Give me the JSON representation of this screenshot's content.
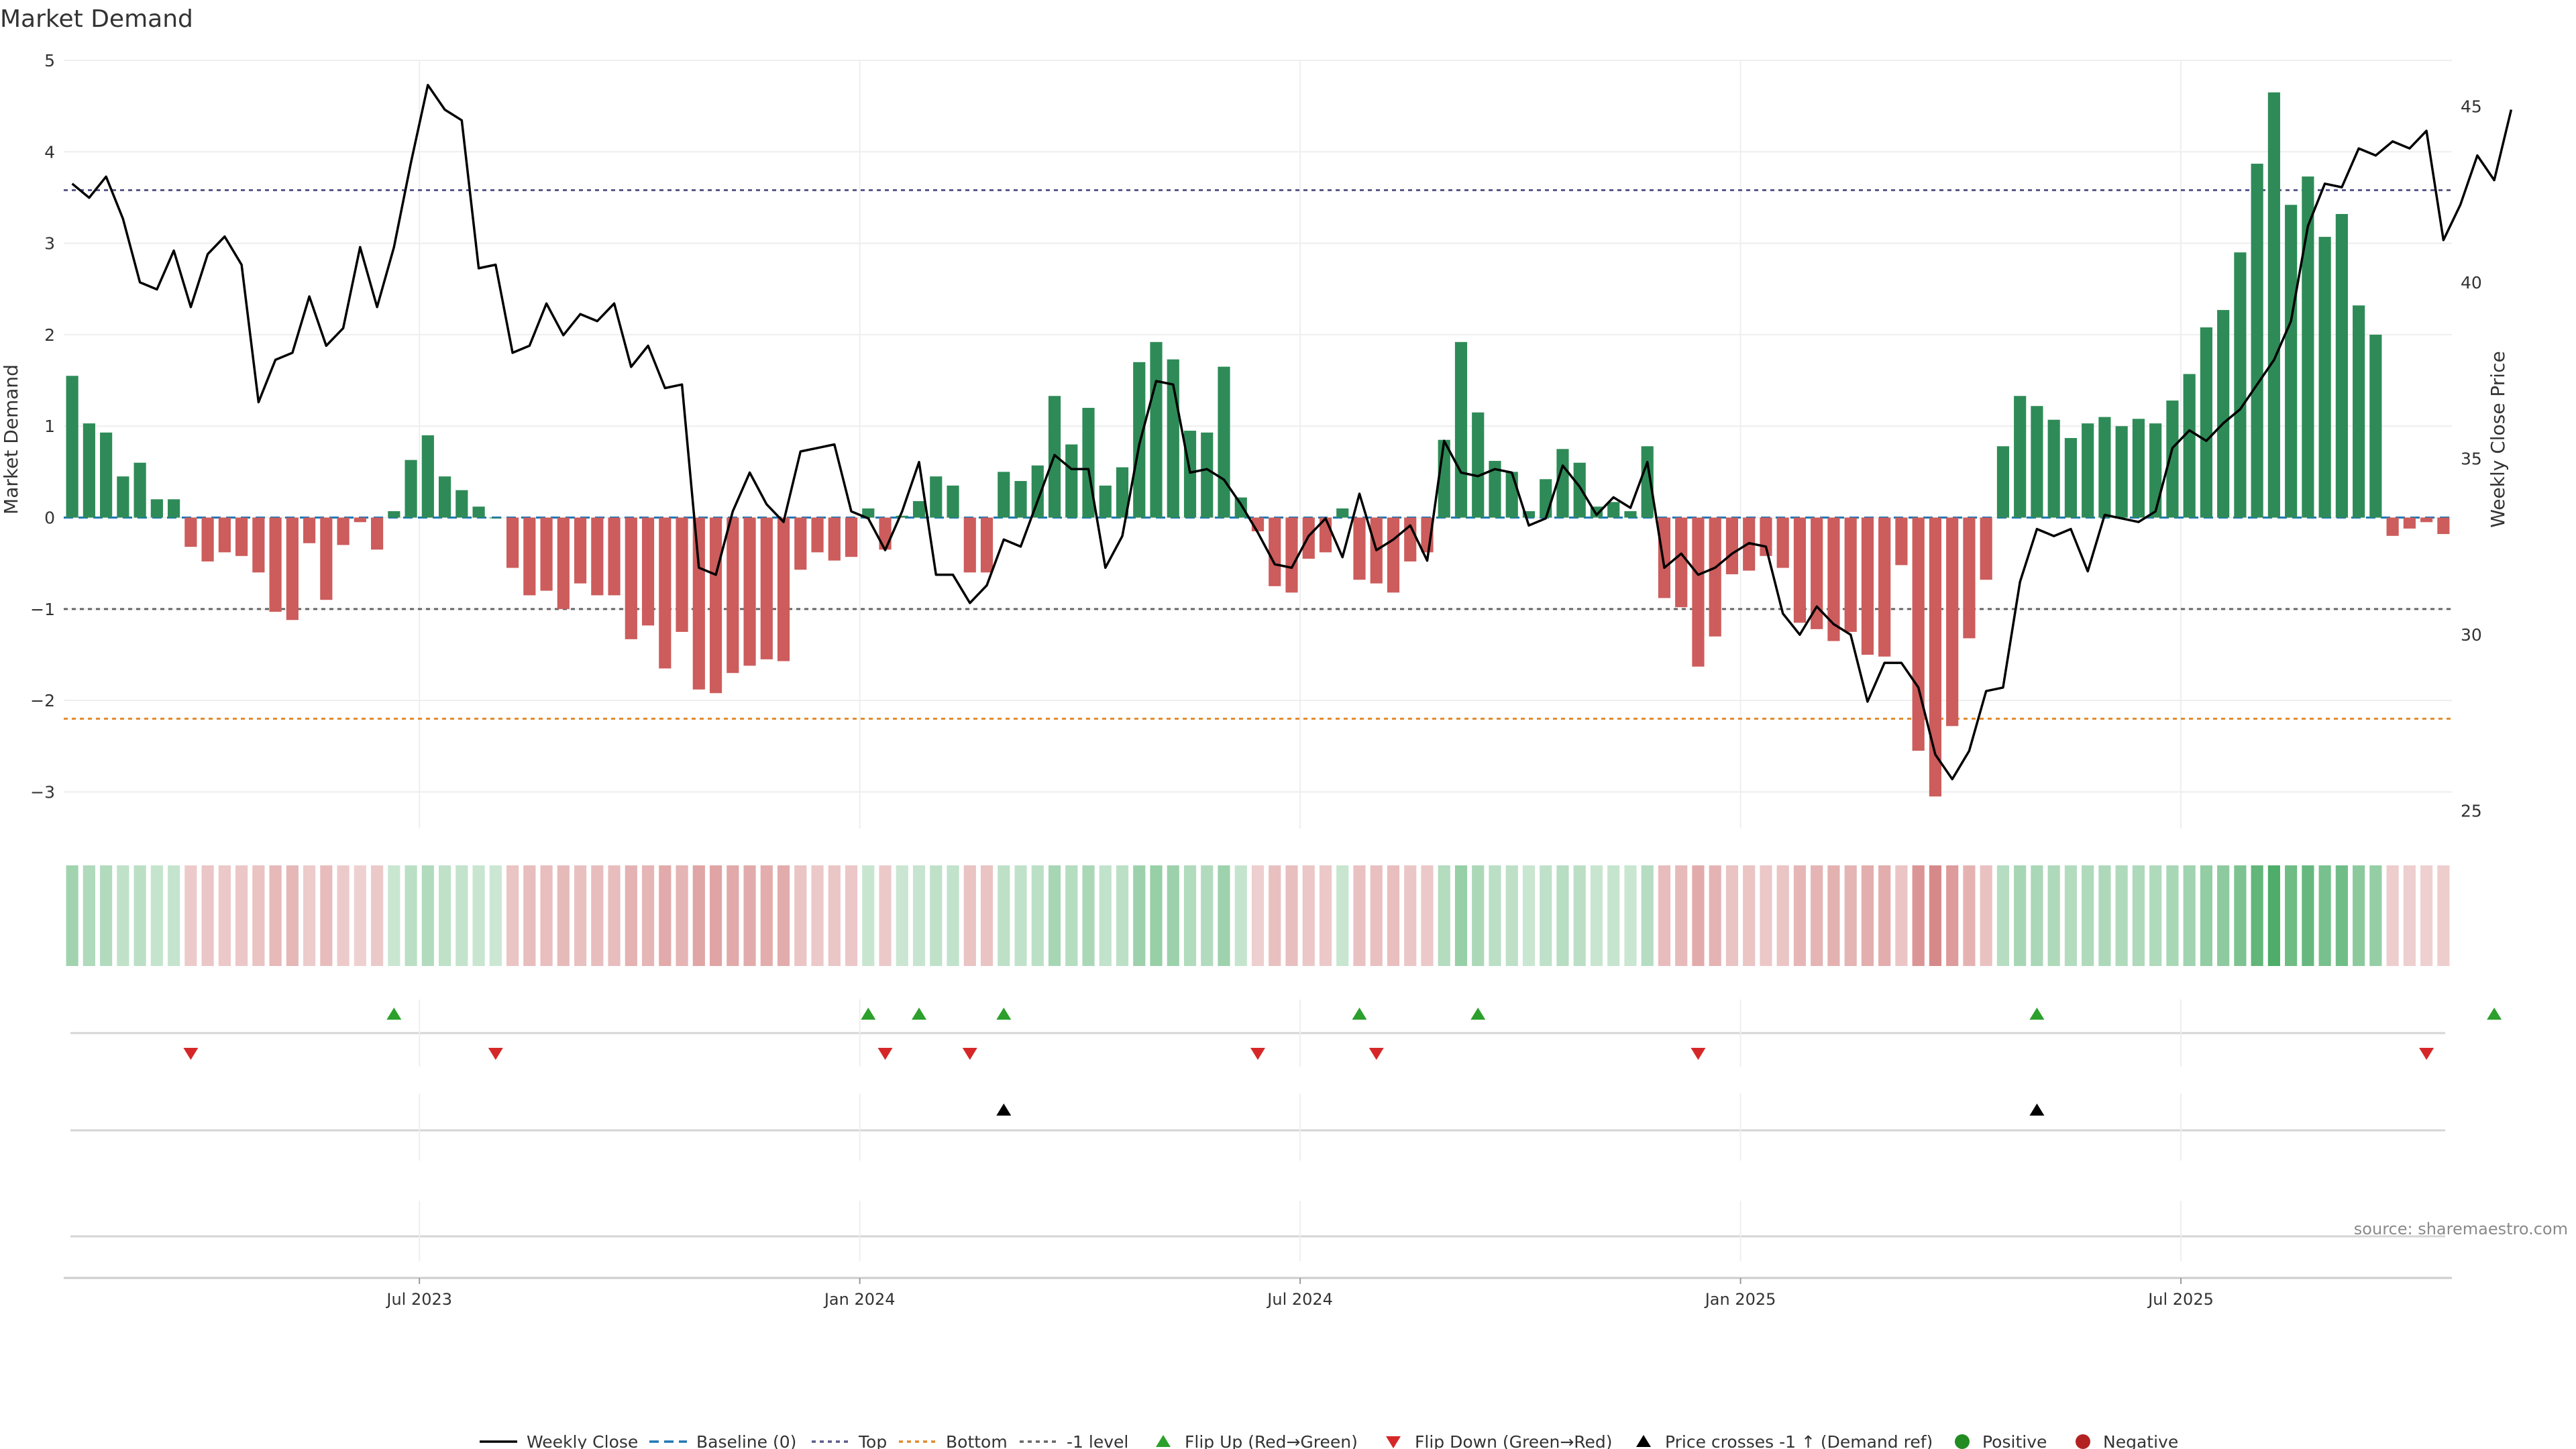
{
  "chart_data": {
    "type": "bar",
    "title": "Market Demand",
    "ylabel": "Market Demand",
    "y2label": "Weekly Close Price",
    "ylim": [
      -3.4,
      5.0
    ],
    "y2lim": [
      24.5,
      46.3
    ],
    "y_ticks": [
      5,
      4,
      3,
      2,
      1,
      0,
      -1,
      -2,
      -3
    ],
    "y_tick_labels": [
      "5",
      "4",
      "3",
      "2",
      "1",
      "0",
      "−1",
      "−2",
      "−3"
    ],
    "y2_ticks": [
      45,
      40,
      35,
      30,
      25
    ],
    "y2_tick_labels": [
      "45",
      "40",
      "35",
      "30",
      "25"
    ],
    "x_tick_index": [
      20.5,
      46.5,
      72.5,
      98.5,
      124.5
    ],
    "x_tick_labels": [
      "Jul 2023",
      "Jan 2024",
      "Jul 2024",
      "Jan 2025",
      "Jul 2025"
    ],
    "reference_lines": {
      "top": 3.58,
      "bottom": -2.2,
      "minus_one": -1,
      "baseline": 0
    },
    "demand": [
      1.55,
      1.03,
      0.93,
      0.45,
      0.6,
      0.2,
      0.2,
      -0.32,
      -0.48,
      -0.38,
      -0.42,
      -0.6,
      -1.03,
      -1.12,
      -0.28,
      -0.9,
      -0.3,
      -0.05,
      -0.35,
      0.07,
      0.63,
      0.9,
      0.45,
      0.3,
      0.12,
      0,
      -0.55,
      -0.85,
      -0.8,
      -1.0,
      -0.72,
      -0.85,
      -0.85,
      -1.33,
      -1.18,
      -1.65,
      -1.25,
      -1.88,
      -1.92,
      -1.7,
      -1.62,
      -1.55,
      -1.57,
      -0.57,
      -0.38,
      -0.47,
      -0.43,
      0.1,
      -0.35,
      0.02,
      0.18,
      0.45,
      0.35,
      -0.6,
      -0.6,
      0.5,
      0.4,
      0.57,
      1.33,
      0.8,
      1.2,
      0.35,
      0.55,
      1.7,
      1.92,
      1.73,
      0.95,
      0.93,
      1.65,
      0.22,
      -0.15,
      -0.75,
      -0.82,
      -0.45,
      -0.38,
      0.1,
      -0.68,
      -0.72,
      -0.82,
      -0.48,
      -0.38,
      0.85,
      1.92,
      1.15,
      0.62,
      0.5,
      0.07,
      0.42,
      0.75,
      0.6,
      0.12,
      0.17,
      0.07,
      0.78,
      -0.88,
      -0.98,
      -1.63,
      -1.3,
      -0.62,
      -0.58,
      -0.42,
      -0.55,
      -1.15,
      -1.22,
      -1.35,
      -1.25,
      -1.5,
      -1.52,
      -0.52,
      -2.55,
      -3.05,
      -2.28,
      -1.32,
      -0.68,
      0.78,
      1.33,
      1.22,
      1.07,
      0.87,
      1.03,
      1.1,
      1.0,
      1.08,
      1.03,
      1.28,
      1.57,
      2.08,
      2.27,
      2.9,
      3.87,
      4.65,
      3.42,
      3.73,
      3.07,
      3.32,
      2.32,
      2.0,
      -0.2,
      -0.12,
      -0.05,
      -0.18
    ],
    "flip_up_index": [
      19,
      47,
      50,
      55,
      76,
      83,
      116,
      143
    ],
    "flip_down_index": [
      7,
      25,
      48,
      53,
      70,
      77,
      96,
      139
    ],
    "cross_up_index": [
      55,
      116
    ],
    "price": [
      42.8,
      42.4,
      43.0,
      41.8,
      40.0,
      39.8,
      40.9,
      39.3,
      40.8,
      41.3,
      40.5,
      36.6,
      37.8,
      38.0,
      39.6,
      38.2,
      38.7,
      41.0,
      39.3,
      41.0,
      43.4,
      45.6,
      44.9,
      44.6,
      40.4,
      40.5,
      38.0,
      38.2,
      39.4,
      38.5,
      39.1,
      38.9,
      39.4,
      37.6,
      38.2,
      37.0,
      37.1,
      31.9,
      31.7,
      33.5,
      34.6,
      33.7,
      33.2,
      35.2,
      35.3,
      35.4,
      33.5,
      33.3,
      32.4,
      33.5,
      34.9,
      31.7,
      31.7,
      30.9,
      31.4,
      32.7,
      32.5,
      33.8,
      35.1,
      34.7,
      34.7,
      31.9,
      32.8,
      35.4,
      37.2,
      37.1,
      34.6,
      34.7,
      34.4,
      33.7,
      32.9,
      32.0,
      31.9,
      32.8,
      33.3,
      32.2,
      34.0,
      32.4,
      32.7,
      33.1,
      32.1,
      35.5,
      34.6,
      34.5,
      34.7,
      34.6,
      33.1,
      33.3,
      34.8,
      34.2,
      33.4,
      33.9,
      33.6,
      34.9,
      31.9,
      32.3,
      31.7,
      31.9,
      32.3,
      32.6,
      32.5,
      30.6,
      30.0,
      30.8,
      30.3,
      30.0,
      28.1,
      29.2,
      29.2,
      28.5,
      26.6,
      25.9,
      26.7,
      28.4,
      28.5,
      31.5,
      33.0,
      32.8,
      33.0,
      31.8,
      33.4,
      33.3,
      33.2,
      33.5,
      35.3,
      35.8,
      35.5,
      36.0,
      36.4,
      37.1,
      37.8,
      38.9,
      41.6,
      42.8,
      42.7,
      43.8,
      43.6,
      44.0,
      43.8,
      44.3,
      41.2,
      42.2,
      43.6,
      42.9,
      44.9
    ],
    "legend": [
      "Weekly Close",
      "Baseline (0)",
      "Top",
      "Bottom",
      "-1 level",
      "Flip Up (Red→Green)",
      "Flip Down (Green→Red)",
      "Price crosses -1 ↑ (Demand ref)",
      "Positive",
      "Negative"
    ],
    "source": "source: sharemaestro.com"
  },
  "colors": {
    "positive_bar": "#2e8b57",
    "negative_bar": "#cd5c5c",
    "price_line": "#000000",
    "baseline": "#1f77b4",
    "top_line": "#5a5a8a",
    "bottom_line": "#e08a2b",
    "minus_one_line": "#666666",
    "flip_up": "#2ca02c",
    "flip_down": "#d62728",
    "cross": "#000000",
    "positive_dot": "#228b22",
    "negative_dot": "#b22222",
    "grid": "#eeeeee",
    "text": "#333333"
  }
}
